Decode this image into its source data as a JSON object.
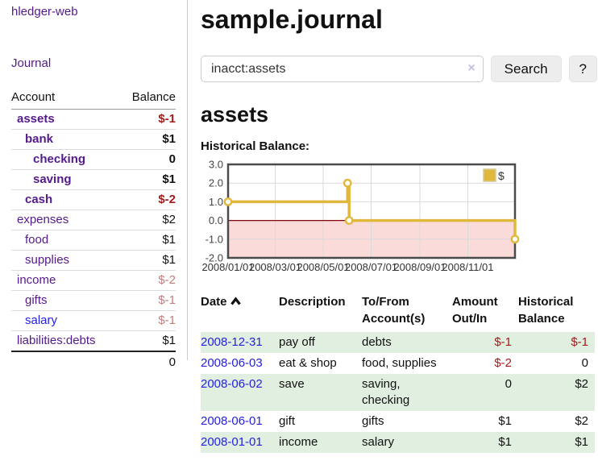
{
  "app": {
    "title": "hledger-web",
    "nav_journal": "Journal"
  },
  "colors": {
    "accent_purple": "#551a8b",
    "link_blue": "#2422dd",
    "negative_strong": "#a21c1c",
    "negative_faded": "#c27d7d",
    "row_green": "#e1efe0",
    "chart_gold": "#e0b83e",
    "chart_negative_bg": "#fbdada",
    "zero_line": "#8b0000"
  },
  "sidebar": {
    "account_header": "Account",
    "balance_header": "Balance",
    "rows": [
      {
        "label": "assets",
        "indent": 1,
        "bold": true,
        "label_class": "purple",
        "balance": "$-1",
        "balance_class": "neg-strong"
      },
      {
        "label": "bank",
        "indent": 2,
        "bold": true,
        "label_class": "purple",
        "balance": "$1",
        "balance_class": ""
      },
      {
        "label": "checking",
        "indent": 3,
        "bold": true,
        "label_class": "purple",
        "balance": "0",
        "balance_class": ""
      },
      {
        "label": "saving",
        "indent": 3,
        "bold": true,
        "label_class": "purple",
        "balance": "$1",
        "balance_class": ""
      },
      {
        "label": "cash",
        "indent": 2,
        "bold": true,
        "label_class": "purple",
        "balance": "$-2",
        "balance_class": "neg-strong"
      },
      {
        "label": "expenses",
        "indent": 1,
        "bold": false,
        "label_class": "purple",
        "balance": "$2",
        "balance_class": ""
      },
      {
        "label": "food",
        "indent": 2,
        "bold": false,
        "label_class": "purple",
        "balance": "$1",
        "balance_class": ""
      },
      {
        "label": "supplies",
        "indent": 2,
        "bold": false,
        "label_class": "purple",
        "balance": "$1",
        "balance_class": ""
      },
      {
        "label": "income",
        "indent": 1,
        "bold": false,
        "label_class": "purple",
        "balance": "$-2",
        "balance_class": "neg-faded"
      },
      {
        "label": "gifts",
        "indent": 2,
        "bold": false,
        "label_class": "purple",
        "balance": "$-1",
        "balance_class": "neg-faded"
      },
      {
        "label": "salary",
        "indent": 2,
        "bold": false,
        "label_class": "blue",
        "balance": "$-1",
        "balance_class": "neg-faded"
      },
      {
        "label": "liabilities:debts",
        "indent": 1,
        "bold": false,
        "label_class": "purple",
        "balance": "$1",
        "balance_class": ""
      }
    ],
    "total": "0"
  },
  "main": {
    "title": "sample.journal",
    "search": {
      "value": "inacct:assets",
      "clear_icon": "×",
      "button": "Search",
      "help": "?"
    },
    "account_heading": "assets",
    "chart_label": "Historical Balance:"
  },
  "chart_data": {
    "type": "line",
    "title": "Historical Balance:",
    "step": true,
    "series": [
      {
        "name": "$",
        "color": "#e0b83e",
        "points": [
          [
            "2008-01-01",
            1
          ],
          [
            "2008-06-01",
            2
          ],
          [
            "2008-06-03",
            0
          ],
          [
            "2008-12-31",
            -1
          ]
        ]
      }
    ],
    "ylim": [
      -2,
      3
    ],
    "yticks": [
      3.0,
      2.0,
      1.0,
      0.0,
      -1.0,
      -2.0
    ],
    "xrange": [
      "2008-01-01",
      "2008-12-31"
    ],
    "xticks": [
      {
        "date": "2008-01-01",
        "label": "2008/01/01"
      },
      {
        "date": "2008-03-01",
        "label": "2008/03/01"
      },
      {
        "date": "2008-05-01",
        "label": "2008/05/01"
      },
      {
        "date": "2008-07-01",
        "label": "2008/07/01"
      },
      {
        "date": "2008-09-01",
        "label": "2008/09/01"
      },
      {
        "date": "2008-11-01",
        "label": "2008/11/01"
      }
    ],
    "grid": true,
    "legend_position": "top-right",
    "negative_fill": "#fbdada",
    "zero_line_color": "#8b0000"
  },
  "register": {
    "headers": {
      "date": "Date",
      "description": "Description",
      "accounts": "To/From Account(s)",
      "amount": "Amount Out/In",
      "balance": "Historical Balance"
    },
    "rows": [
      {
        "date": "2008-12-31",
        "description": "pay off",
        "accounts": "debts",
        "amount": "$-1",
        "amount_class": "neg",
        "balance": "$-1",
        "balance_class": "neg",
        "shaded": true
      },
      {
        "date": "2008-06-03",
        "description": "eat & shop",
        "accounts": "food, supplies",
        "amount": "$-2",
        "amount_class": "neg",
        "balance": "0",
        "balance_class": "",
        "shaded": false
      },
      {
        "date": "2008-06-02",
        "description": "save",
        "accounts": "saving, checking",
        "amount": "0",
        "amount_class": "",
        "balance": "$2",
        "balance_class": "",
        "shaded": true
      },
      {
        "date": "2008-06-01",
        "description": "gift",
        "accounts": "gifts",
        "amount": "$1",
        "amount_class": "",
        "balance": "$2",
        "balance_class": "",
        "shaded": false
      },
      {
        "date": "2008-01-01",
        "description": "income",
        "accounts": "salary",
        "amount": "$1",
        "amount_class": "",
        "balance": "$1",
        "balance_class": "",
        "shaded": true
      }
    ]
  }
}
